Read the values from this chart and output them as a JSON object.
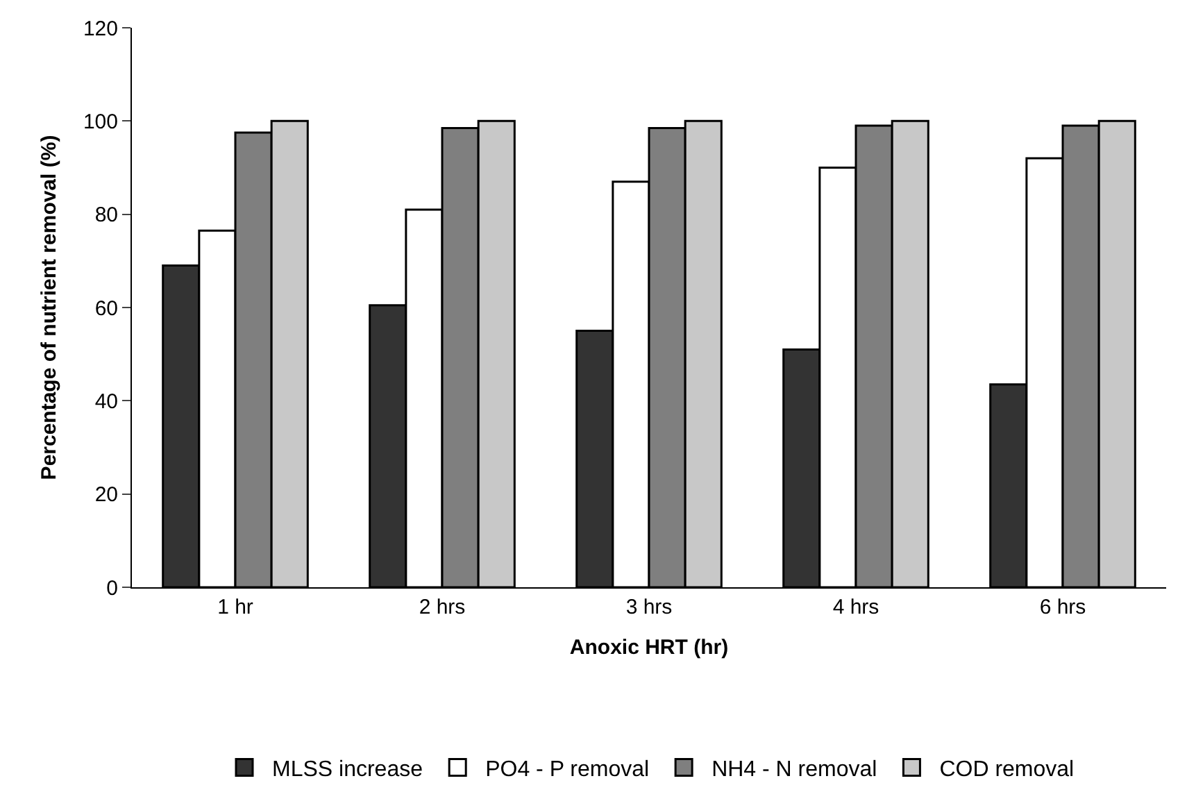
{
  "chart_data": {
    "type": "bar",
    "xlabel": "Anoxic HRT (hr)",
    "ylabel": "Percentage of nutrient removal (%)",
    "categories": [
      "1 hr",
      "2 hrs",
      "3 hrs",
      "4 hrs",
      "6 hrs"
    ],
    "series": [
      {
        "name": "MLSS increase",
        "color": "#333333",
        "values": [
          69,
          60.5,
          55,
          51,
          43.5
        ]
      },
      {
        "name": "PO4 - P removal",
        "color": "#ffffff",
        "values": [
          76.5,
          81,
          87,
          90,
          92
        ]
      },
      {
        "name": "NH4 - N removal",
        "color": "#7f7f7f",
        "values": [
          97.5,
          98.5,
          98.5,
          99,
          99
        ]
      },
      {
        "name": "COD removal",
        "color": "#c8c8c8",
        "values": [
          100,
          100,
          100,
          100,
          100
        ]
      }
    ],
    "ylim": [
      0,
      120
    ],
    "yticks": [
      0,
      20,
      40,
      60,
      80,
      100,
      120
    ],
    "grid": false,
    "legend": "bottom"
  }
}
